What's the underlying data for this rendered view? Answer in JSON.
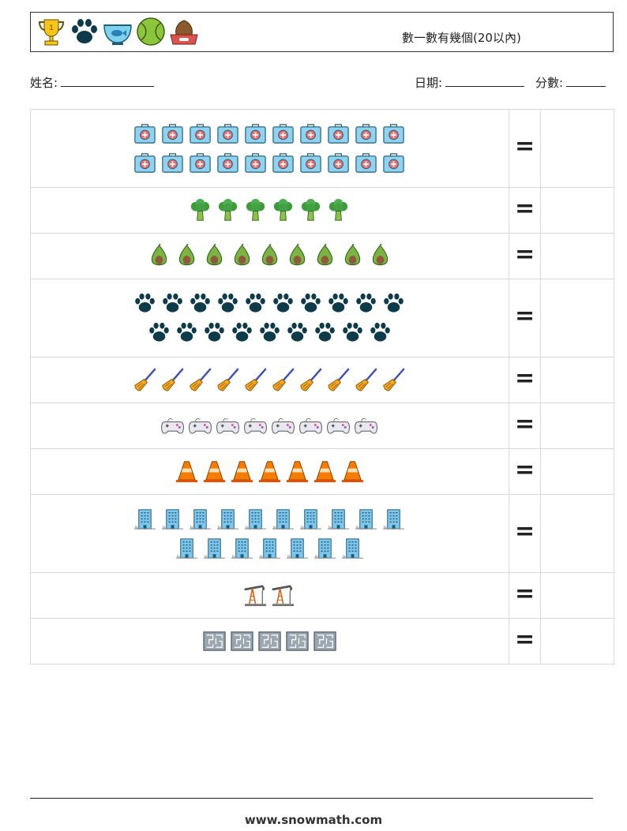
{
  "header": {
    "icons": [
      "trophy-icon",
      "paw-icon",
      "fish-bowl-icon",
      "tennis-ball-icon",
      "dog-bowl-icon"
    ],
    "title": "數一數有幾個(20以內)"
  },
  "fields": {
    "name_label": "姓名:",
    "date_label": "日期:",
    "score_label": "分數:"
  },
  "rows": [
    {
      "icon": "first-aid-kit-icon",
      "lines": [
        10,
        10
      ],
      "sign": "="
    },
    {
      "icon": "broccoli-icon",
      "lines": [
        6
      ],
      "sign": "="
    },
    {
      "icon": "avocado-icon",
      "lines": [
        9
      ],
      "sign": "="
    },
    {
      "icon": "paw-icon",
      "lines": [
        10,
        9
      ],
      "sign": "="
    },
    {
      "icon": "broom-icon",
      "lines": [
        10
      ],
      "sign": "="
    },
    {
      "icon": "gamepad-icon",
      "lines": [
        8
      ],
      "sign": "="
    },
    {
      "icon": "traffic-cone-icon",
      "lines": [
        7
      ],
      "sign": "="
    },
    {
      "icon": "building-icon",
      "lines": [
        10,
        7
      ],
      "sign": "="
    },
    {
      "icon": "oil-pump-icon",
      "lines": [
        2
      ],
      "sign": "="
    },
    {
      "icon": "maze-icon",
      "lines": [
        5
      ],
      "sign": "="
    }
  ],
  "footer": {
    "url": "www.snowmath.com"
  }
}
